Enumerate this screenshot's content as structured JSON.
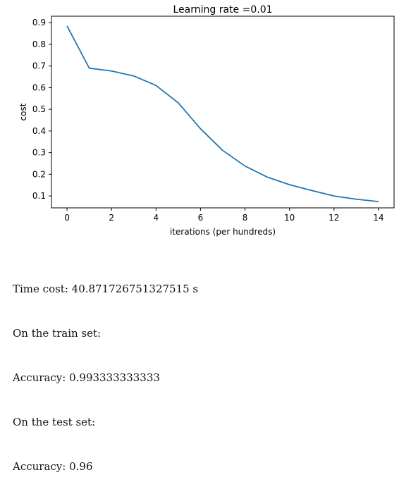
{
  "chart_data": {
    "type": "line",
    "title": "Learning rate =0.01",
    "xlabel": "iterations (per hundreds)",
    "ylabel": "cost",
    "xlim": [
      -0.7,
      14.7
    ],
    "ylim": [
      0.045,
      0.93
    ],
    "xticks": [
      0,
      2,
      4,
      6,
      8,
      10,
      12,
      14
    ],
    "yticks": [
      0.1,
      0.2,
      0.3,
      0.4,
      0.5,
      0.6,
      0.7,
      0.8,
      0.9
    ],
    "grid": false,
    "series": [
      {
        "color": "#1f77b4",
        "x": [
          0,
          1,
          2,
          3,
          4,
          5,
          6,
          7,
          8,
          9,
          10,
          11,
          12,
          13,
          14
        ],
        "y": [
          0.885,
          0.69,
          0.677,
          0.654,
          0.61,
          0.53,
          0.41,
          0.31,
          0.238,
          0.187,
          0.152,
          0.125,
          0.1,
          0.085,
          0.074
        ]
      }
    ]
  },
  "output": {
    "time_line": "Time cost: 40.871726751327515 s",
    "train_label": "On the train set:",
    "train_accuracy": "Accuracy: 0.993333333333",
    "test_label": "On the test set:",
    "test_accuracy": "Accuracy: 0.96"
  }
}
